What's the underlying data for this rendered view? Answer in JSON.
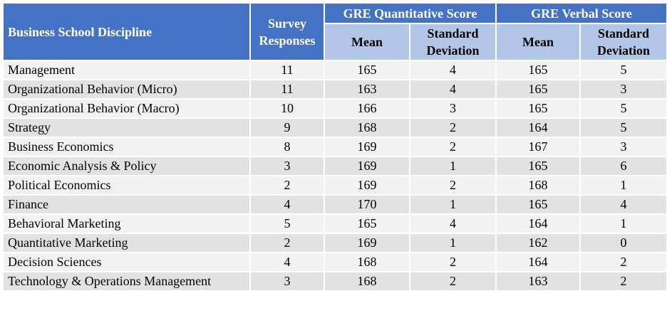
{
  "table": {
    "header": {
      "discipline": "Business School Discipline",
      "responses": "Survey Responses",
      "groups": [
        "GRE Quantitative Score",
        "GRE Verbal Score"
      ],
      "subheaders": [
        "Mean",
        "Standard Deviation",
        "Mean",
        "Standard Deviation"
      ]
    },
    "rows": [
      [
        "Management",
        11,
        165,
        4,
        165,
        5
      ],
      [
        "Organizational Behavior (Micro)",
        11,
        163,
        4,
        165,
        3
      ],
      [
        "Organizational Behavior (Macro)",
        10,
        166,
        3,
        165,
        5
      ],
      [
        "Strategy",
        9,
        168,
        2,
        164,
        5
      ],
      [
        "Business Economics",
        8,
        169,
        2,
        167,
        3
      ],
      [
        "Economic Analysis & Policy",
        3,
        169,
        1,
        165,
        6
      ],
      [
        "Political Economics",
        2,
        169,
        2,
        168,
        1
      ],
      [
        "Finance",
        4,
        170,
        1,
        165,
        4
      ],
      [
        "Behavioral Marketing",
        5,
        165,
        4,
        164,
        1
      ],
      [
        "Quantitative Marketing",
        2,
        169,
        1,
        162,
        0
      ],
      [
        "Decision Sciences",
        4,
        168,
        2,
        164,
        2
      ],
      [
        "Technology & Operations Management",
        3,
        168,
        2,
        163,
        2
      ]
    ]
  }
}
